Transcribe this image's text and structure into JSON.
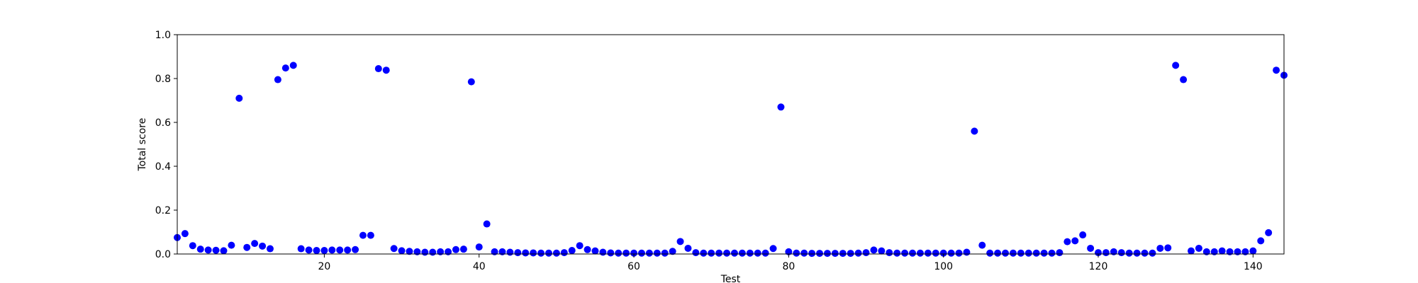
{
  "chart_data": {
    "type": "scatter",
    "title": "",
    "xlabel": "Test",
    "ylabel": "Total score",
    "xlim": [
      1,
      144
    ],
    "ylim": [
      0,
      1.0
    ],
    "xticks": [
      20,
      40,
      60,
      80,
      100,
      120,
      140
    ],
    "yticks": [
      0.0,
      0.2,
      0.4,
      0.6,
      0.8,
      1.0
    ],
    "xtick_labels": [
      "20",
      "40",
      "60",
      "80",
      "100",
      "120",
      "140"
    ],
    "ytick_labels": [
      "0.0",
      "0.2",
      "0.4",
      "0.6",
      "0.8",
      "1.0"
    ],
    "grid": false,
    "legend": "none",
    "marker_color": "#0000ff",
    "series": [
      {
        "x": [
          1,
          2,
          3,
          4,
          5,
          6,
          7,
          8,
          9,
          10,
          11,
          12,
          13,
          14,
          15,
          16,
          17,
          18,
          19,
          20,
          21,
          22,
          23,
          24,
          25,
          26,
          27,
          28,
          29,
          30,
          31,
          32,
          33,
          34,
          35,
          36,
          37,
          38,
          39,
          40,
          41,
          42,
          43,
          44,
          45,
          46,
          47,
          48,
          49,
          50,
          51,
          52,
          53,
          54,
          55,
          56,
          57,
          58,
          59,
          60,
          61,
          62,
          63,
          64,
          65,
          66,
          67,
          68,
          69,
          70,
          71,
          72,
          73,
          74,
          75,
          76,
          77,
          78,
          79,
          80,
          81,
          82,
          83,
          84,
          85,
          86,
          87,
          88,
          89,
          90,
          91,
          92,
          93,
          94,
          95,
          96,
          97,
          98,
          99,
          100,
          101,
          102,
          103,
          104,
          105,
          106,
          107,
          108,
          109,
          110,
          111,
          112,
          113,
          114,
          115,
          116,
          117,
          118,
          119,
          120,
          121,
          122,
          123,
          124,
          125,
          126,
          127,
          128,
          129,
          130,
          131,
          132,
          133,
          134,
          135,
          136,
          137,
          138,
          139,
          140,
          141,
          142,
          143,
          144
        ],
        "y": [
          0.075,
          0.093,
          0.038,
          0.022,
          0.018,
          0.017,
          0.015,
          0.04,
          0.71,
          0.03,
          0.048,
          0.036,
          0.024,
          0.795,
          0.848,
          0.86,
          0.024,
          0.018,
          0.016,
          0.016,
          0.018,
          0.018,
          0.018,
          0.02,
          0.085,
          0.085,
          0.845,
          0.838,
          0.025,
          0.015,
          0.012,
          0.01,
          0.008,
          0.008,
          0.01,
          0.01,
          0.02,
          0.022,
          0.785,
          0.032,
          0.137,
          0.01,
          0.01,
          0.008,
          0.006,
          0.005,
          0.005,
          0.004,
          0.004,
          0.004,
          0.006,
          0.016,
          0.038,
          0.02,
          0.014,
          0.008,
          0.005,
          0.004,
          0.004,
          0.004,
          0.004,
          0.004,
          0.004,
          0.004,
          0.012,
          0.057,
          0.026,
          0.006,
          0.004,
          0.004,
          0.004,
          0.004,
          0.004,
          0.004,
          0.004,
          0.004,
          0.004,
          0.025,
          0.67,
          0.01,
          0.004,
          0.004,
          0.003,
          0.003,
          0.003,
          0.003,
          0.003,
          0.003,
          0.004,
          0.006,
          0.018,
          0.014,
          0.006,
          0.004,
          0.004,
          0.004,
          0.004,
          0.004,
          0.004,
          0.004,
          0.004,
          0.004,
          0.008,
          0.56,
          0.04,
          0.004,
          0.004,
          0.004,
          0.004,
          0.004,
          0.004,
          0.004,
          0.004,
          0.004,
          0.006,
          0.056,
          0.06,
          0.087,
          0.026,
          0.006,
          0.006,
          0.01,
          0.006,
          0.004,
          0.004,
          0.004,
          0.004,
          0.026,
          0.028,
          0.86,
          0.795,
          0.014,
          0.026,
          0.01,
          0.01,
          0.014,
          0.01,
          0.01,
          0.01,
          0.014,
          0.06,
          0.097,
          0.838,
          0.815
        ]
      }
    ]
  }
}
